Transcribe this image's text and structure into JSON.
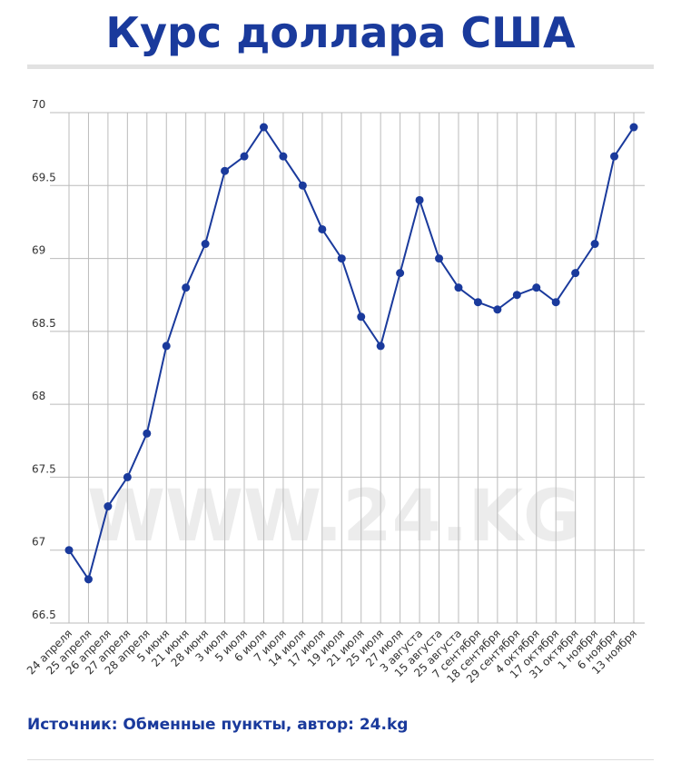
{
  "chart_data": {
    "type": "line",
    "title": "Курс доллара США",
    "categories": [
      "24 апреля",
      "25 апреля",
      "26 апреля",
      "27 апреля",
      "28 апреля",
      "5 июня",
      "21 июня",
      "28 июня",
      "3 июля",
      "5 июля",
      "6 июля",
      "7 июля",
      "14 июля",
      "17 июля",
      "19 июля",
      "21 июля",
      "25 июля",
      "27 июля",
      "3 августа",
      "15 августа",
      "25 августа",
      "7 сентября",
      "18 сентября",
      "29 сентября",
      "4 октября",
      "17 октября",
      "31 октября",
      "1 ноября",
      "6 ноября",
      "13 ноября"
    ],
    "series": [
      {
        "color": "#1a3a9c",
        "values": [
          67.0,
          66.8,
          67.3,
          67.5,
          67.8,
          68.4,
          68.8,
          69.1,
          69.6,
          69.7,
          69.9,
          69.7,
          69.5,
          69.2,
          69.0,
          68.6,
          68.4,
          68.9,
          69.4,
          69.0,
          68.8,
          68.7,
          68.65,
          68.75,
          68.8,
          68.7,
          68.9,
          69.1,
          69.7,
          69.9
        ]
      }
    ],
    "ylim": [
      66.5,
      70
    ],
    "yticks": [
      66.5,
      67,
      67.5,
      68,
      68.5,
      69,
      69.5,
      70
    ],
    "grid": true,
    "watermark": "WWW.24.KG",
    "source": "Источник: Обменные пункты, автор: 24.kg"
  }
}
